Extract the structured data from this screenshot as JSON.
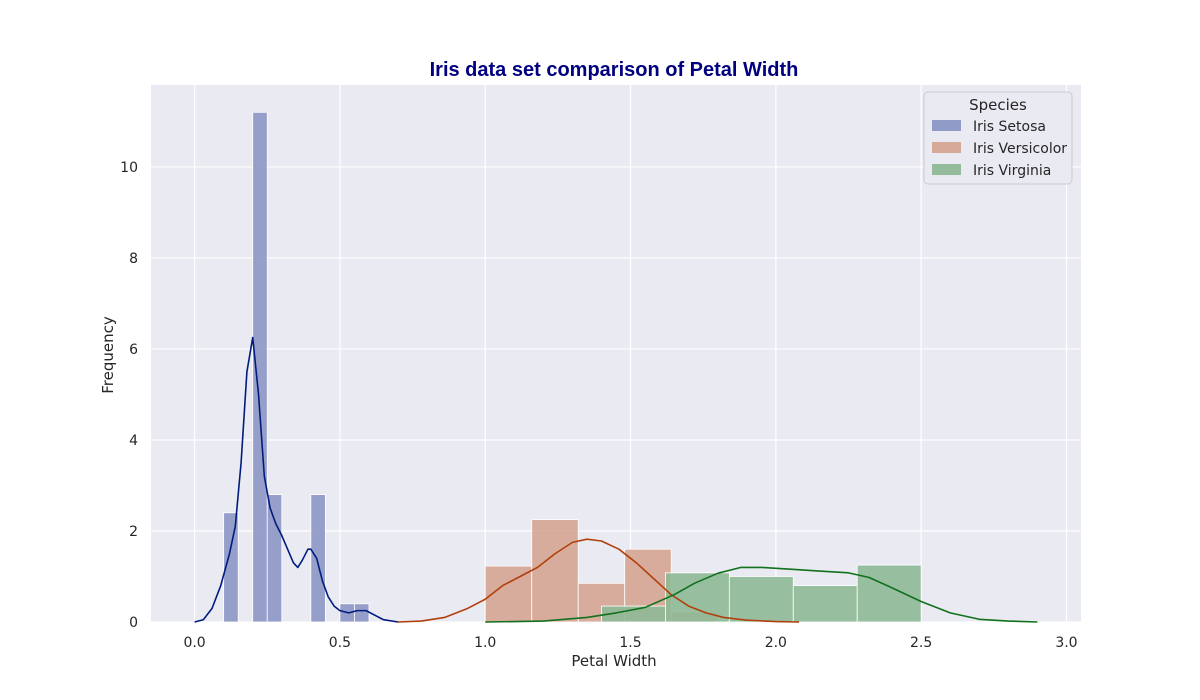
{
  "chart_data": {
    "type": "bar",
    "title": "Iris data set comparison of Petal Width",
    "xlabel": "Petal Width",
    "ylabel": "Frequency",
    "xlim": [
      -0.15,
      3.05
    ],
    "ylim": [
      0,
      11.8
    ],
    "xticks": [
      0.0,
      0.5,
      1.0,
      1.5,
      2.0,
      2.5,
      3.0
    ],
    "xtick_labels": [
      "0.0",
      "0.5",
      "1.0",
      "1.5",
      "2.0",
      "2.5",
      "3.0"
    ],
    "yticks": [
      0,
      2,
      4,
      6,
      8,
      10
    ],
    "ytick_labels": [
      "0",
      "2",
      "4",
      "6",
      "8",
      "10"
    ],
    "grid": true,
    "legend": {
      "title": "Species",
      "position": "top-right"
    },
    "series": [
      {
        "name": "Iris Setosa",
        "color": "#001c7f",
        "bar_color": "#8c97c4",
        "bins": [
          {
            "x0": 0.1,
            "x1": 0.15,
            "value": 2.4
          },
          {
            "x0": 0.15,
            "x1": 0.2,
            "value": 0
          },
          {
            "x0": 0.2,
            "x1": 0.25,
            "value": 11.2
          },
          {
            "x0": 0.25,
            "x1": 0.3,
            "value": 2.8
          },
          {
            "x0": 0.3,
            "x1": 0.35,
            "value": 0
          },
          {
            "x0": 0.35,
            "x1": 0.4,
            "value": 0
          },
          {
            "x0": 0.4,
            "x1": 0.45,
            "value": 2.8
          },
          {
            "x0": 0.45,
            "x1": 0.5,
            "value": 0
          },
          {
            "x0": 0.5,
            "x1": 0.55,
            "value": 0.4
          },
          {
            "x0": 0.55,
            "x1": 0.6,
            "value": 0.4
          }
        ],
        "kde": [
          [
            0.0,
            0.0
          ],
          [
            0.03,
            0.05
          ],
          [
            0.06,
            0.3
          ],
          [
            0.09,
            0.8
          ],
          [
            0.12,
            1.5
          ],
          [
            0.14,
            2.1
          ],
          [
            0.16,
            3.5
          ],
          [
            0.18,
            5.5
          ],
          [
            0.2,
            6.25
          ],
          [
            0.22,
            5.0
          ],
          [
            0.24,
            3.2
          ],
          [
            0.26,
            2.5
          ],
          [
            0.28,
            2.15
          ],
          [
            0.3,
            1.9
          ],
          [
            0.32,
            1.6
          ],
          [
            0.34,
            1.3
          ],
          [
            0.355,
            1.2
          ],
          [
            0.37,
            1.35
          ],
          [
            0.39,
            1.6
          ],
          [
            0.4,
            1.6
          ],
          [
            0.42,
            1.4
          ],
          [
            0.44,
            0.9
          ],
          [
            0.46,
            0.55
          ],
          [
            0.48,
            0.35
          ],
          [
            0.5,
            0.25
          ],
          [
            0.53,
            0.2
          ],
          [
            0.56,
            0.25
          ],
          [
            0.59,
            0.25
          ],
          [
            0.62,
            0.15
          ],
          [
            0.65,
            0.05
          ],
          [
            0.7,
            0.0
          ]
        ]
      },
      {
        "name": "Iris Versicolor",
        "color": "#b1400d",
        "bar_color": "#d6a592",
        "bins": [
          {
            "x0": 1.0,
            "x1": 1.16,
            "value": 1.23
          },
          {
            "x0": 1.16,
            "x1": 1.32,
            "value": 2.25
          },
          {
            "x0": 1.32,
            "x1": 1.48,
            "value": 0.85
          },
          {
            "x0": 1.48,
            "x1": 1.64,
            "value": 1.6
          },
          {
            "x0": 1.64,
            "x1": 1.8,
            "value": 0.22
          }
        ],
        "kde": [
          [
            0.7,
            0.0
          ],
          [
            0.78,
            0.02
          ],
          [
            0.86,
            0.1
          ],
          [
            0.94,
            0.3
          ],
          [
            1.0,
            0.5
          ],
          [
            1.06,
            0.8
          ],
          [
            1.12,
            1.0
          ],
          [
            1.18,
            1.2
          ],
          [
            1.24,
            1.5
          ],
          [
            1.3,
            1.75
          ],
          [
            1.35,
            1.82
          ],
          [
            1.4,
            1.78
          ],
          [
            1.46,
            1.6
          ],
          [
            1.52,
            1.3
          ],
          [
            1.58,
            0.95
          ],
          [
            1.64,
            0.6
          ],
          [
            1.7,
            0.35
          ],
          [
            1.76,
            0.2
          ],
          [
            1.82,
            0.1
          ],
          [
            1.9,
            0.04
          ],
          [
            2.0,
            0.01
          ],
          [
            2.08,
            0.0
          ]
        ]
      },
      {
        "name": "Iris Virginia",
        "color": "#12711c",
        "bar_color": "#8fb997",
        "bins": [
          {
            "x0": 1.4,
            "x1": 1.62,
            "value": 0.35
          },
          {
            "x0": 1.62,
            "x1": 1.84,
            "value": 1.08
          },
          {
            "x0": 1.84,
            "x1": 2.06,
            "value": 1.0
          },
          {
            "x0": 2.06,
            "x1": 2.28,
            "value": 0.8
          },
          {
            "x0": 2.28,
            "x1": 2.5,
            "value": 1.25
          }
        ],
        "kde": [
          [
            1.0,
            0.0
          ],
          [
            1.2,
            0.02
          ],
          [
            1.35,
            0.1
          ],
          [
            1.45,
            0.2
          ],
          [
            1.55,
            0.32
          ],
          [
            1.65,
            0.6
          ],
          [
            1.72,
            0.85
          ],
          [
            1.8,
            1.07
          ],
          [
            1.88,
            1.2
          ],
          [
            1.95,
            1.2
          ],
          [
            2.05,
            1.16
          ],
          [
            2.15,
            1.12
          ],
          [
            2.25,
            1.08
          ],
          [
            2.32,
            0.98
          ],
          [
            2.4,
            0.75
          ],
          [
            2.5,
            0.45
          ],
          [
            2.6,
            0.2
          ],
          [
            2.7,
            0.06
          ],
          [
            2.8,
            0.02
          ],
          [
            2.9,
            0.0
          ]
        ]
      }
    ]
  }
}
